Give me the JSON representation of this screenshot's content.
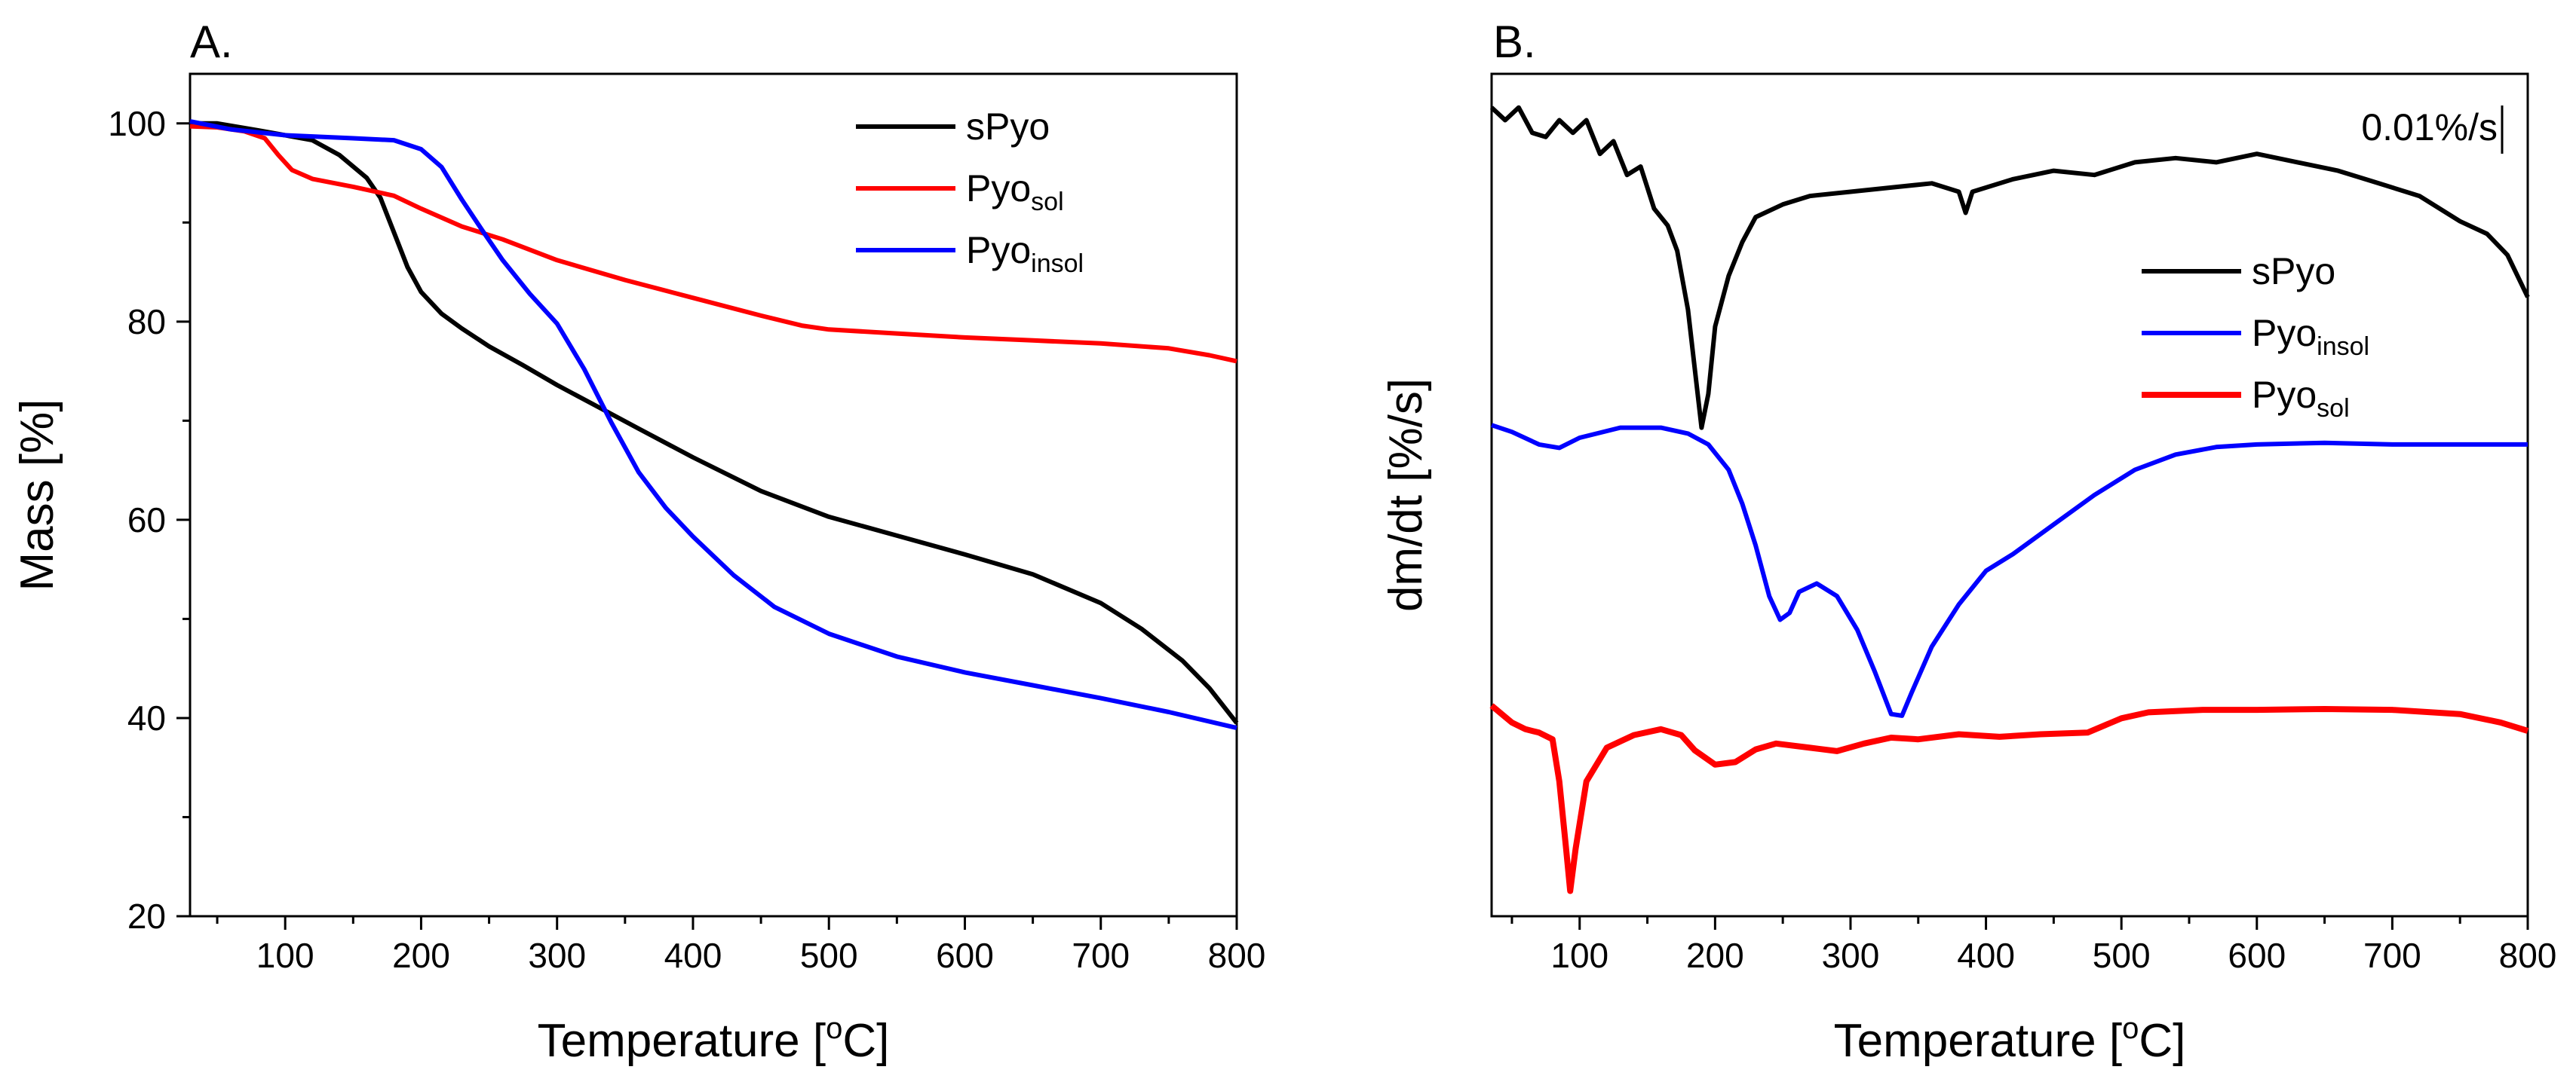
{
  "chart_data": [
    {
      "type": "line",
      "panel_label": "A.",
      "xlabel": "Temperature [",
      "xlabel_sup": "o",
      "xlabel_tail": "C]",
      "ylabel": "Mass [%]",
      "xlim": [
        30,
        800
      ],
      "ylim": [
        20,
        105
      ],
      "xticks": [
        100,
        200,
        300,
        400,
        500,
        600,
        700,
        800
      ],
      "yticks": [
        20,
        40,
        60,
        80,
        100
      ],
      "legend_position": "top-right",
      "series": [
        {
          "name": "sPyo",
          "sub": "",
          "color": "#000000",
          "points": [
            [
              30,
              100
            ],
            [
              50,
              100
            ],
            [
              80,
              99.3
            ],
            [
              100,
              98.8
            ],
            [
              120,
              98.3
            ],
            [
              140,
              96.8
            ],
            [
              160,
              94.5
            ],
            [
              170,
              92.5
            ],
            [
              180,
              89
            ],
            [
              190,
              85.5
            ],
            [
              200,
              83
            ],
            [
              215,
              80.8
            ],
            [
              230,
              79.3
            ],
            [
              250,
              77.5
            ],
            [
              275,
              75.6
            ],
            [
              300,
              73.6
            ],
            [
              330,
              71.4
            ],
            [
              360,
              69.2
            ],
            [
              400,
              66.3
            ],
            [
              450,
              62.9
            ],
            [
              500,
              60.3
            ],
            [
              550,
              58.4
            ],
            [
              600,
              56.5
            ],
            [
              650,
              54.5
            ],
            [
              700,
              51.6
            ],
            [
              730,
              49
            ],
            [
              760,
              45.8
            ],
            [
              780,
              43
            ],
            [
              800,
              39.5
            ]
          ]
        },
        {
          "name": "Pyo",
          "sub": "sol",
          "color": "#ff0000",
          "points": [
            [
              30,
              99.7
            ],
            [
              50,
              99.6
            ],
            [
              70,
              99.2
            ],
            [
              85,
              98.5
            ],
            [
              95,
              96.8
            ],
            [
              105,
              95.3
            ],
            [
              120,
              94.4
            ],
            [
              150,
              93.6
            ],
            [
              180,
              92.7
            ],
            [
              200,
              91.4
            ],
            [
              230,
              89.6
            ],
            [
              260,
              88.3
            ],
            [
              300,
              86.2
            ],
            [
              350,
              84.2
            ],
            [
              400,
              82.4
            ],
            [
              450,
              80.6
            ],
            [
              480,
              79.6
            ],
            [
              500,
              79.2
            ],
            [
              550,
              78.8
            ],
            [
              600,
              78.4
            ],
            [
              650,
              78.1
            ],
            [
              700,
              77.8
            ],
            [
              750,
              77.3
            ],
            [
              780,
              76.6
            ],
            [
              800,
              76
            ]
          ]
        },
        {
          "name": "Pyo",
          "sub": "insol",
          "color": "#0000ff",
          "points": [
            [
              30,
              100.2
            ],
            [
              60,
              99.4
            ],
            [
              100,
              98.8
            ],
            [
              150,
              98.5
            ],
            [
              180,
              98.3
            ],
            [
              200,
              97.4
            ],
            [
              215,
              95.6
            ],
            [
              230,
              92.3
            ],
            [
              245,
              89.2
            ],
            [
              260,
              86.2
            ],
            [
              280,
              82.8
            ],
            [
              300,
              79.8
            ],
            [
              320,
              75.2
            ],
            [
              340,
              69.8
            ],
            [
              360,
              64.8
            ],
            [
              380,
              61.2
            ],
            [
              400,
              58.3
            ],
            [
              430,
              54.4
            ],
            [
              460,
              51.2
            ],
            [
              500,
              48.5
            ],
            [
              550,
              46.2
            ],
            [
              600,
              44.6
            ],
            [
              650,
              43.3
            ],
            [
              700,
              42
            ],
            [
              750,
              40.6
            ],
            [
              800,
              39
            ]
          ]
        }
      ]
    },
    {
      "type": "line",
      "panel_label": "B.",
      "xlabel": "Temperature [",
      "xlabel_sup": "o",
      "xlabel_tail": "C]",
      "ylabel": "dm/dt [%/s]",
      "xlim": [
        35,
        800
      ],
      "ylim": [
        0,
        1
      ],
      "y_units": "arbitrary offset (no tick labels)",
      "xticks": [
        100,
        200,
        300,
        400,
        500,
        600,
        700,
        800
      ],
      "yticks": [],
      "scale_bar_label": "0.01%/s",
      "legend_position": "upper-right",
      "series": [
        {
          "name": "sPyo",
          "sub": "",
          "color": "#000000",
          "points": [
            [
              35,
              0.96
            ],
            [
              45,
              0.945
            ],
            [
              55,
              0.96
            ],
            [
              65,
              0.93
            ],
            [
              75,
              0.925
            ],
            [
              85,
              0.945
            ],
            [
              95,
              0.93
            ],
            [
              105,
              0.945
            ],
            [
              115,
              0.905
            ],
            [
              125,
              0.92
            ],
            [
              135,
              0.88
            ],
            [
              145,
              0.89
            ],
            [
              155,
              0.84
            ],
            [
              165,
              0.82
            ],
            [
              172,
              0.79
            ],
            [
              180,
              0.72
            ],
            [
              185,
              0.65
            ],
            [
              190,
              0.58
            ],
            [
              195,
              0.62
            ],
            [
              200,
              0.7
            ],
            [
              210,
              0.76
            ],
            [
              220,
              0.8
            ],
            [
              230,
              0.83
            ],
            [
              250,
              0.845
            ],
            [
              270,
              0.855
            ],
            [
              300,
              0.86
            ],
            [
              330,
              0.865
            ],
            [
              360,
              0.87
            ],
            [
              380,
              0.86
            ],
            [
              385,
              0.835
            ],
            [
              390,
              0.86
            ],
            [
              420,
              0.875
            ],
            [
              450,
              0.885
            ],
            [
              480,
              0.88
            ],
            [
              510,
              0.895
            ],
            [
              540,
              0.9
            ],
            [
              570,
              0.895
            ],
            [
              600,
              0.905
            ],
            [
              630,
              0.895
            ],
            [
              660,
              0.885
            ],
            [
              690,
              0.87
            ],
            [
              720,
              0.855
            ],
            [
              750,
              0.825
            ],
            [
              770,
              0.81
            ],
            [
              785,
              0.785
            ],
            [
              800,
              0.735
            ]
          ]
        },
        {
          "name": "Pyo",
          "sub": "insol",
          "color": "#0000ff",
          "points": [
            [
              35,
              0.583
            ],
            [
              50,
              0.575
            ],
            [
              70,
              0.56
            ],
            [
              85,
              0.556
            ],
            [
              100,
              0.568
            ],
            [
              130,
              0.58
            ],
            [
              160,
              0.58
            ],
            [
              180,
              0.573
            ],
            [
              195,
              0.56
            ],
            [
              210,
              0.53
            ],
            [
              220,
              0.49
            ],
            [
              230,
              0.44
            ],
            [
              240,
              0.38
            ],
            [
              248,
              0.352
            ],
            [
              255,
              0.36
            ],
            [
              262,
              0.385
            ],
            [
              275,
              0.395
            ],
            [
              290,
              0.38
            ],
            [
              305,
              0.34
            ],
            [
              318,
              0.29
            ],
            [
              330,
              0.24
            ],
            [
              338,
              0.238
            ],
            [
              345,
              0.265
            ],
            [
              360,
              0.32
            ],
            [
              380,
              0.37
            ],
            [
              400,
              0.41
            ],
            [
              420,
              0.43
            ],
            [
              450,
              0.465
            ],
            [
              480,
              0.5
            ],
            [
              510,
              0.53
            ],
            [
              540,
              0.548
            ],
            [
              570,
              0.557
            ],
            [
              600,
              0.56
            ],
            [
              650,
              0.562
            ],
            [
              700,
              0.56
            ],
            [
              750,
              0.56
            ],
            [
              800,
              0.56
            ]
          ]
        },
        {
          "name": "Pyo",
          "sub": "sol",
          "color": "#ff0000",
          "points": [
            [
              35,
              0.25
            ],
            [
              50,
              0.23
            ],
            [
              60,
              0.222
            ],
            [
              70,
              0.218
            ],
            [
              80,
              0.21
            ],
            [
              85,
              0.16
            ],
            [
              90,
              0.08
            ],
            [
              93,
              0.03
            ],
            [
              97,
              0.08
            ],
            [
              105,
              0.16
            ],
            [
              120,
              0.2
            ],
            [
              140,
              0.215
            ],
            [
              160,
              0.222
            ],
            [
              175,
              0.215
            ],
            [
              185,
              0.197
            ],
            [
              200,
              0.18
            ],
            [
              215,
              0.183
            ],
            [
              230,
              0.198
            ],
            [
              245,
              0.205
            ],
            [
              270,
              0.2
            ],
            [
              290,
              0.196
            ],
            [
              310,
              0.205
            ],
            [
              330,
              0.212
            ],
            [
              350,
              0.21
            ],
            [
              380,
              0.216
            ],
            [
              410,
              0.213
            ],
            [
              440,
              0.216
            ],
            [
              475,
              0.218
            ],
            [
              500,
              0.235
            ],
            [
              520,
              0.242
            ],
            [
              560,
              0.245
            ],
            [
              600,
              0.245
            ],
            [
              650,
              0.246
            ],
            [
              700,
              0.245
            ],
            [
              750,
              0.24
            ],
            [
              780,
              0.23
            ],
            [
              800,
              0.22
            ]
          ]
        }
      ]
    }
  ]
}
